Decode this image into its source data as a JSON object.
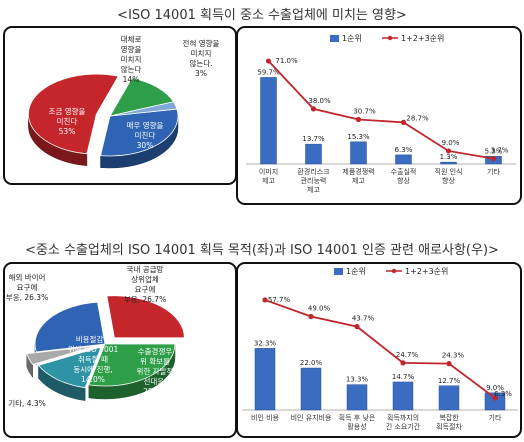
{
  "titles": {
    "top": "<ISO 14001 획득이 중소 수출업체에 미치는 영향>",
    "bottom": "<중소 수출업체의 ISO 14001 획득 목적(좌)과 ISO 14001 인증 관련 애로사항(우)>"
  },
  "colors": {
    "red": "#c4262b",
    "blue": "#2f64b4",
    "lightblue": "#7ea8d8",
    "green": "#2e9e49",
    "teal": "#2f93a6",
    "gray": "#a9a9a9",
    "bar": "#3a6cc2",
    "line": "#c0262c"
  },
  "chart_data": [
    {
      "type": "pie",
      "slices": [
        {
          "label": [
            "매우 영향을",
            "미친다"
          ],
          "value": 30,
          "text": "30%",
          "color": "#2f64b4"
        },
        {
          "label": [
            "조금 영향을",
            "미친다"
          ],
          "value": 53,
          "text": "53%",
          "color": "#c4262b"
        },
        {
          "label": [
            "대체로",
            "영향을",
            "미치지",
            "않는다"
          ],
          "value": 14,
          "text": "14%",
          "color": "#2e9e49"
        },
        {
          "label": [
            "전혀 영향을",
            "미치지",
            "않는다."
          ],
          "value": 3,
          "text": "3%",
          "color": "#7ea8d8"
        }
      ]
    },
    {
      "type": "bar",
      "legend": [
        "1순위",
        "1+2+3순위"
      ],
      "categories": [
        [
          "이미지",
          "제고"
        ],
        [
          "환경리스크",
          "관리능력",
          "제고"
        ],
        [
          "제품경쟁력",
          "제고"
        ],
        [
          "수출실적",
          "향상"
        ],
        [
          "직원 인식",
          "향상"
        ],
        [
          "기타"
        ]
      ],
      "series": [
        {
          "name": "1순위",
          "kind": "bar",
          "values": [
            59.7,
            13.7,
            15.3,
            6.3,
            1.3,
            5.3
          ],
          "labels": [
            "59.7%",
            "13.7%",
            "15.3%",
            "6.3%",
            "1.3%",
            "5.3%"
          ]
        },
        {
          "name": "1+2+3순위",
          "kind": "line",
          "values": [
            71.0,
            38.0,
            30.7,
            28.7,
            9.0,
            3.7
          ],
          "labels": [
            "71.0%",
            "38.0%",
            "30.7%",
            "28.7%",
            "9.0%",
            "3.7%"
          ]
        }
      ],
      "ylim": [
        0,
        80
      ]
    },
    {
      "type": "pie",
      "slices": [
        {
          "label": [
            "수출경쟁우",
            "위 확보를",
            "위한 자발적",
            "선대응,",
            "28.7%"
          ],
          "value": 28.7,
          "text": "",
          "color": "#2e9e49"
        },
        {
          "label": [
            "비용절감을",
            "위해 ISO 9001",
            "취득할 때",
            "동시에 진행,",
            "14.0%"
          ],
          "value": 14.0,
          "text": "",
          "color": "#2f93a6"
        },
        {
          "label": [
            "기타, 4.3%"
          ],
          "value": 4.3,
          "text": "",
          "color": "#a9a9a9"
        },
        {
          "label": [
            "해외 바이어",
            "요구에",
            "부응, 26.3%"
          ],
          "value": 26.3,
          "text": "",
          "color": "#2f64b4"
        },
        {
          "label": [
            "국내 공급망",
            "상위업체",
            "요구에",
            "부응, 26.7%"
          ],
          "value": 26.7,
          "text": "",
          "color": "#c4262b"
        }
      ]
    },
    {
      "type": "bar",
      "legend": [
        "1순위",
        "1+2+3순위"
      ],
      "categories": [
        [
          "비인 비용"
        ],
        [
          "비인 유지비용"
        ],
        [
          "획득 후 낮은",
          "활용성"
        ],
        [
          "획득까지의",
          "긴 소요기간"
        ],
        [
          "복잡한",
          "획득절차"
        ],
        [
          "기타"
        ]
      ],
      "series": [
        {
          "name": "1순위",
          "kind": "bar",
          "values": [
            32.3,
            22.0,
            13.3,
            14.7,
            12.7,
            9.0
          ],
          "labels": [
            "32.3%",
            "22.0%",
            "13.3%",
            "14.7%",
            "12.7%",
            "9.0%"
          ]
        },
        {
          "name": "1+2+3순위",
          "kind": "line",
          "values": [
            57.7,
            49.0,
            43.7,
            24.7,
            24.3,
            6.3
          ],
          "labels": [
            "57.7%",
            "49.0%",
            "43.7%",
            "24.7%",
            "24.3%",
            "6.3%"
          ]
        }
      ],
      "ylim": [
        0,
        65
      ]
    }
  ]
}
